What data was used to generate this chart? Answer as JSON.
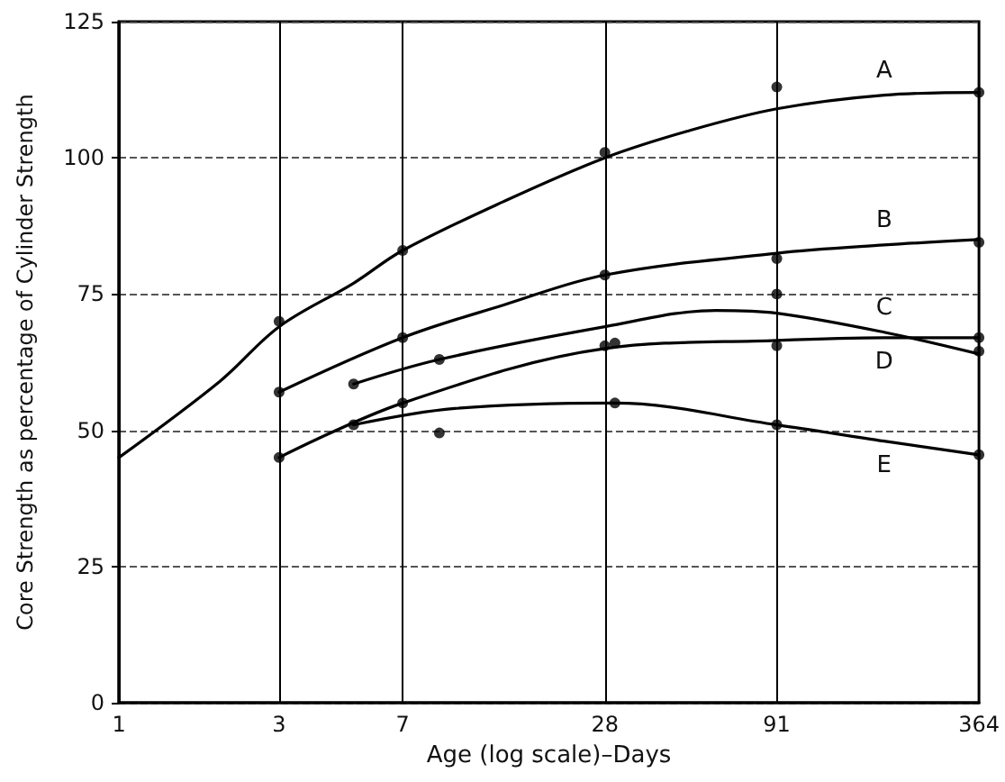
{
  "chart_data": {
    "type": "line",
    "xlabel": "Age (log scale)–Days",
    "ylabel": "Core Strength as percentage of Cylinder Strength",
    "log": "x",
    "xlim": [
      1,
      364
    ],
    "xticks": [
      1,
      3,
      7,
      28,
      91,
      364
    ],
    "ylim": [
      0,
      125
    ],
    "yticks": [
      0,
      25,
      50,
      75,
      100,
      125
    ],
    "grid": true,
    "legend": false,
    "series": [
      {
        "name": "A",
        "marker": "none",
        "color": "#000000",
        "x": [
          1,
          2,
          3,
          5,
          7,
          14,
          28,
          50,
          91,
          190,
          364
        ],
        "values": [
          45,
          59,
          69,
          77,
          83,
          92,
          100,
          105,
          109,
          111.5,
          112
        ]
      },
      {
        "name": "B",
        "marker": "none",
        "color": "#000000",
        "x": [
          3,
          7,
          14,
          28,
          91,
          190,
          364
        ],
        "values": [
          57,
          67,
          73,
          78.5,
          82.5,
          84,
          85
        ]
      },
      {
        "name": "C",
        "marker": "none",
        "color": "#000000",
        "x": [
          5,
          9,
          28,
          60,
          91,
          190,
          364
        ],
        "values": [
          58.5,
          63,
          69,
          72,
          71.5,
          68,
          64
        ]
      },
      {
        "name": "D",
        "marker": "none",
        "color": "#000000",
        "x": [
          3,
          7,
          28,
          91,
          190,
          364
        ],
        "values": [
          45,
          55,
          65,
          66.5,
          67,
          67
        ]
      },
      {
        "name": "E",
        "marker": "none",
        "color": "#000000",
        "x": [
          5,
          10,
          30,
          91,
          190,
          364
        ],
        "values": [
          51,
          54,
          55,
          51,
          48,
          45.5
        ]
      },
      {
        "type": "scatter",
        "marker": "circle",
        "color": "#000000",
        "x": [
          3,
          7,
          28,
          91,
          364
        ],
        "values": [
          70,
          83,
          101,
          113,
          112
        ]
      },
      {
        "type": "scatter",
        "marker": "circle",
        "color": "#000000",
        "x": [
          3,
          7,
          28,
          91,
          364
        ],
        "values": [
          57,
          67,
          78.5,
          81.5,
          84.5
        ]
      },
      {
        "type": "scatter",
        "marker": "circle",
        "color": "#000000",
        "x": [
          5,
          9,
          30,
          91,
          364
        ],
        "values": [
          58.5,
          63,
          66,
          75,
          64.5
        ]
      },
      {
        "type": "scatter",
        "marker": "circle",
        "color": "#000000",
        "x": [
          3,
          7,
          28,
          91,
          364
        ],
        "values": [
          45,
          55,
          65.5,
          65.5,
          67
        ]
      },
      {
        "type": "scatter",
        "marker": "circle",
        "color": "#000000",
        "x": [
          5,
          9,
          30,
          91,
          364
        ],
        "values": [
          51,
          49.5,
          55,
          51,
          45.5
        ]
      }
    ]
  }
}
